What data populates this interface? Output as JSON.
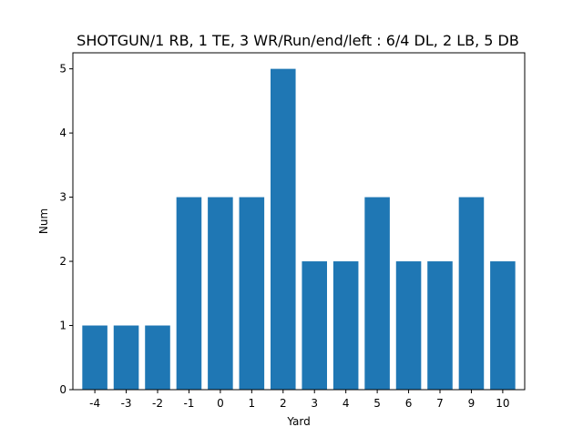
{
  "chart_data": {
    "type": "bar",
    "title": "SHOTGUN/1 RB, 1 TE, 3 WR/Run/end/left : 6/4 DL, 2 LB, 5 DB",
    "xlabel": "Yard",
    "ylabel": "Num",
    "categories": [
      "-4",
      "-3",
      "-2",
      "-1",
      "0",
      "1",
      "2",
      "3",
      "4",
      "5",
      "6",
      "7",
      "9",
      "10"
    ],
    "values": [
      1,
      1,
      1,
      3,
      3,
      3,
      5,
      2,
      2,
      3,
      2,
      2,
      3,
      2
    ],
    "ylim": [
      0,
      5.25
    ],
    "yticks": [
      "0",
      "1",
      "2",
      "3",
      "4",
      "5"
    ],
    "bar_color": "#1f77b4",
    "grid": false
  }
}
